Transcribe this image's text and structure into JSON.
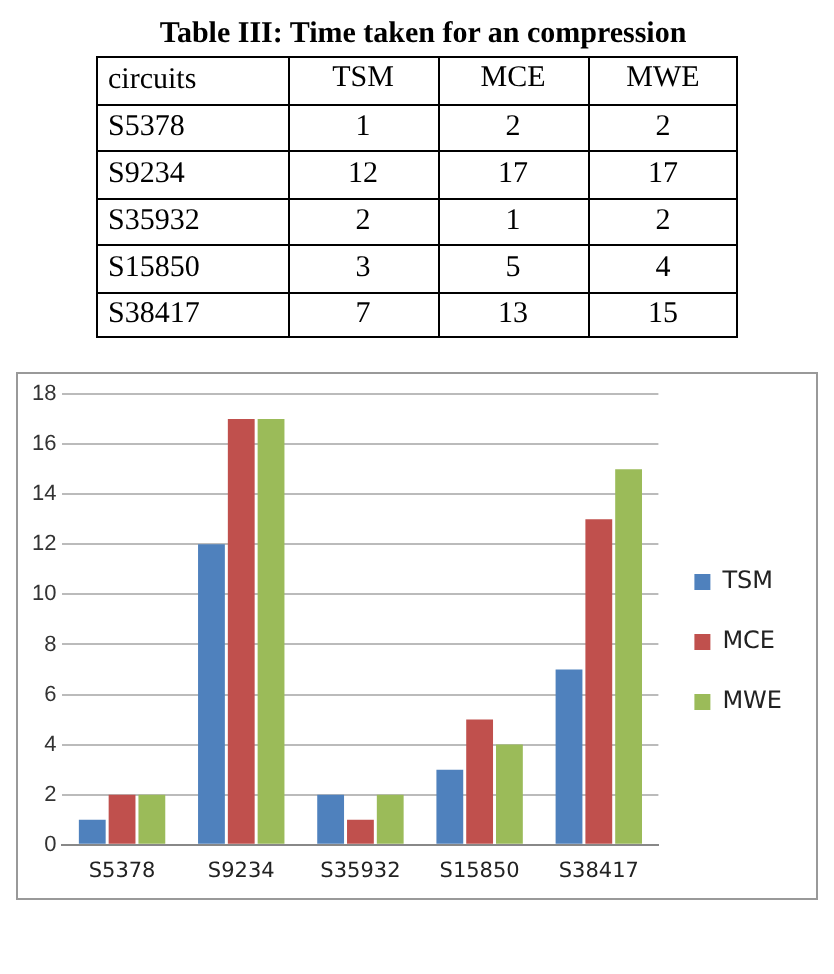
{
  "chart_data": [
    {
      "type": "heatmap",
      "title": "Table III: Time taken for an compression",
      "annotations": [
        "circuits"
      ],
      "categories": [
        "TSM",
        "MCE",
        "MWE"
      ],
      "y_categories": [
        "S5378",
        "S9234",
        "S35932",
        "S15850",
        "S38417"
      ],
      "cells": [
        [
          1,
          2,
          2
        ],
        [
          12,
          17,
          17
        ],
        [
          2,
          1,
          2
        ],
        [
          3,
          5,
          4
        ],
        [
          7,
          13,
          15
        ]
      ],
      "data_labels": true
    },
    {
      "type": "bar",
      "categories": [
        "S5378",
        "S9234",
        "S35932",
        "S15850",
        "S38417"
      ],
      "series": [
        {
          "name": "TSM",
          "color": "#4f81bd",
          "values": [
            1,
            12,
            2,
            3,
            7
          ]
        },
        {
          "name": "MCE",
          "color": "#c0504d",
          "values": [
            2,
            17,
            1,
            5,
            13
          ]
        },
        {
          "name": "MWE",
          "color": "#9bbb59",
          "values": [
            2,
            17,
            2,
            4,
            15
          ]
        }
      ],
      "ylim": [
        0,
        18
      ],
      "yticks": [
        0,
        2,
        4,
        6,
        8,
        10,
        12,
        14,
        16,
        18
      ],
      "grid": "y",
      "legend": "right"
    }
  ]
}
